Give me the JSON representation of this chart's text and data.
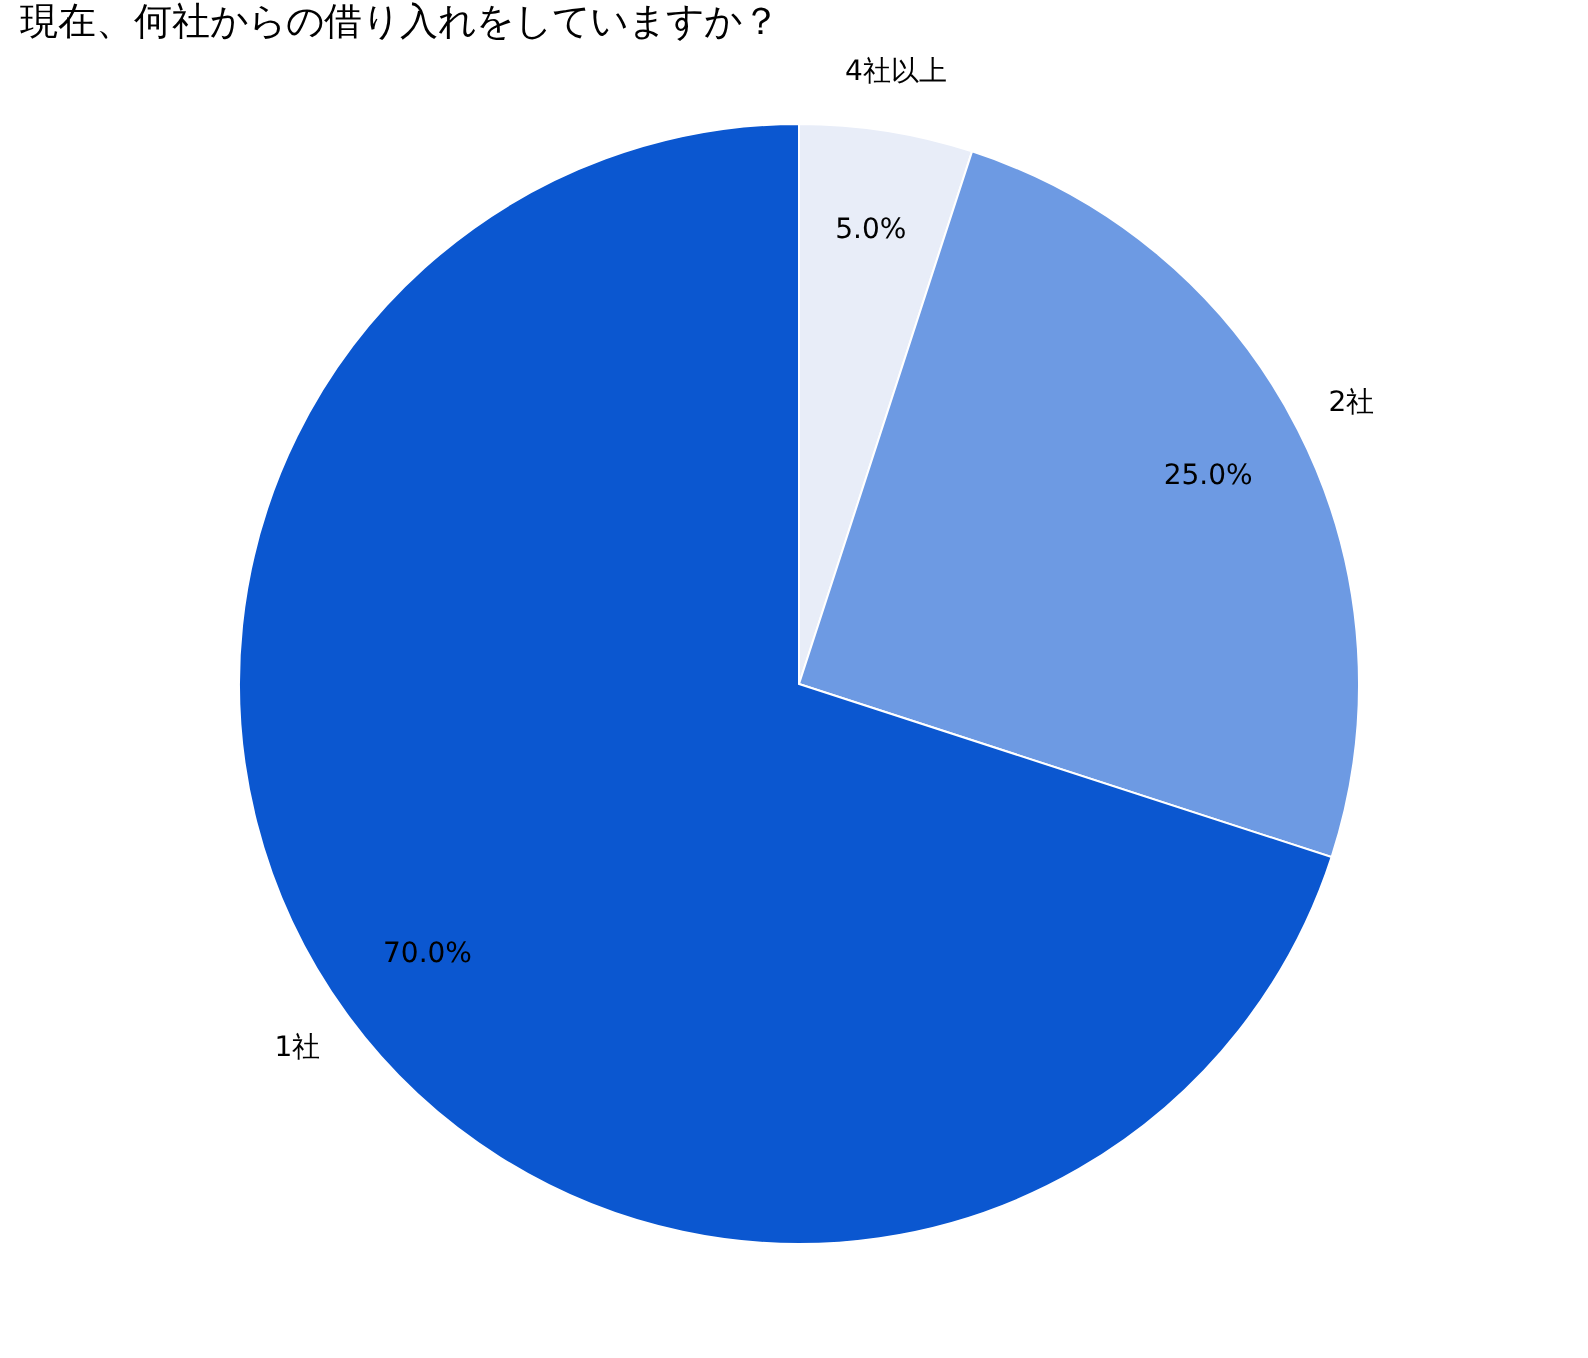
{
  "chart_data": {
    "type": "pie",
    "title": "現在、何社からの借り入れをしていますか？",
    "categories": [
      "4社以上",
      "2社",
      "1社"
    ],
    "values": [
      5,
      25,
      70
    ],
    "colors": [
      "#e8edf8",
      "#6d9ae3",
      "#0b57d0"
    ],
    "value_labels": [
      "5.0%",
      "25.0%",
      "70.0%"
    ],
    "legend": false
  }
}
